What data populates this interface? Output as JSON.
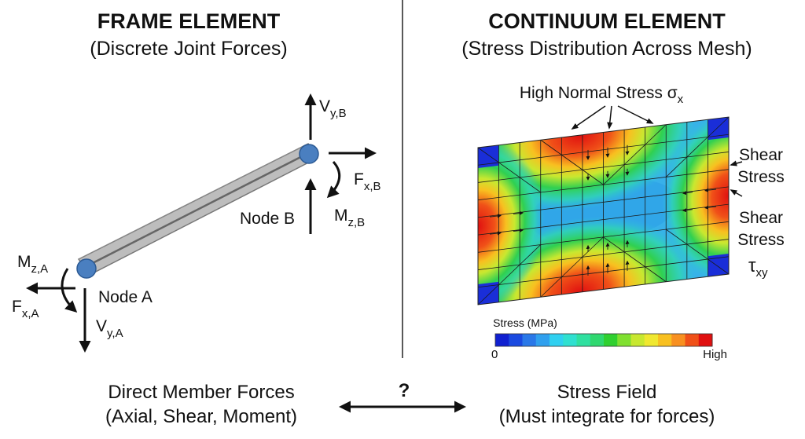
{
  "left": {
    "title": "FRAME ELEMENT",
    "subtitle": "(Discrete Joint Forces)",
    "labels": {
      "vyb": {
        "main": "V",
        "sub": "y,B"
      },
      "fxb": {
        "main": "F",
        "sub": "x,B"
      },
      "mzb": {
        "main": "M",
        "sub": "z,B"
      },
      "node_b": "Node B",
      "mza": {
        "main": "M",
        "sub": "z,A"
      },
      "fxa": {
        "main": "F",
        "sub": "x,A"
      },
      "vya": {
        "main": "V",
        "sub": "y,A"
      },
      "node_a": "Node A"
    },
    "colors": {
      "beam": "#b8b8b8",
      "node": "#4a7fc0"
    }
  },
  "right": {
    "title": "CONTINUUM ELEMENT",
    "subtitle": "(Stress Distribution Across Mesh)",
    "annotations": {
      "normal_stress": "High Normal Stress σ",
      "normal_stress_sub": "x",
      "shear1_line1": "Shear",
      "shear1_line2": "Stress",
      "shear2_line1": "Shear",
      "shear2_line2": "Stress",
      "shear2_symbol": "τ",
      "shear2_sub": "xy"
    },
    "colorbar": {
      "title": "Stress (MPa)",
      "min_label": "0",
      "max_label": "High",
      "colors": [
        "#1020d0",
        "#1a4ae0",
        "#2a78e8",
        "#30a0ee",
        "#30d0f0",
        "#30e0d0",
        "#30e0a0",
        "#30d870",
        "#30d030",
        "#80e030",
        "#c8e830",
        "#f0e830",
        "#f8c020",
        "#f89020",
        "#f05018",
        "#e01010"
      ]
    }
  },
  "bottom": {
    "left_line1": "Direct Member Forces",
    "left_line2": "(Axial, Shear, Moment)",
    "question": "?",
    "right_line1": "Stress Field",
    "right_line2": "(Must integrate for forces)"
  }
}
